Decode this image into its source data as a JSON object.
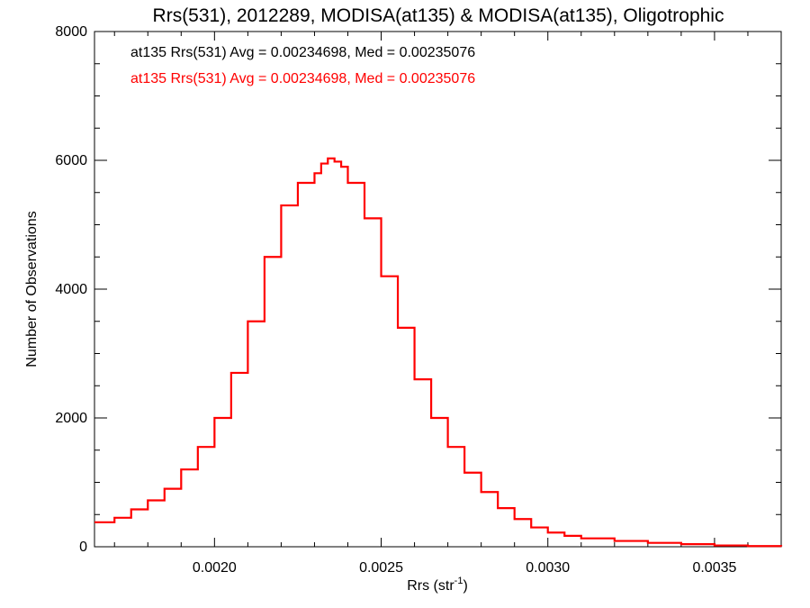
{
  "chart_data": {
    "type": "line",
    "title": "Rrs(531), 2012289, MODISA(at135) & MODISA(at135), Oligotrophic",
    "xlabel_main": "Rrs (str",
    "xlabel_sup": "-1",
    "xlabel_close": ")",
    "ylabel": "Number of Observations",
    "xlim": [
      0.00164,
      0.0037
    ],
    "ylim": [
      0,
      8000
    ],
    "x_ticks": [
      0.002,
      0.0025,
      0.003,
      0.0035
    ],
    "x_tick_labels": [
      "0.0020",
      "0.0025",
      "0.0030",
      "0.0035"
    ],
    "y_ticks": [
      0,
      2000,
      4000,
      6000,
      8000
    ],
    "y_tick_labels": [
      "0",
      "2000",
      "4000",
      "6000",
      "8000"
    ],
    "grid": false,
    "step": true,
    "annotations": [
      {
        "text": "at135 Rrs(531) Avg = 0.00234698, Med = 0.00235076",
        "color": "#000000"
      },
      {
        "text": "at135 Rrs(531) Avg = 0.00234698, Med = 0.00235076",
        "color": "#ff0000"
      }
    ],
    "series": [
      {
        "color": "#ff0000",
        "x": [
          0.00164,
          0.0017,
          0.00175,
          0.0018,
          0.00185,
          0.0019,
          0.00195,
          0.002,
          0.00205,
          0.0021,
          0.00215,
          0.0022,
          0.00225,
          0.0023,
          0.00232,
          0.00234,
          0.00236,
          0.00238,
          0.0024,
          0.00245,
          0.0025,
          0.00255,
          0.0026,
          0.00265,
          0.0027,
          0.00275,
          0.0028,
          0.00285,
          0.0029,
          0.00295,
          0.003,
          0.00305,
          0.0031,
          0.0032,
          0.0033,
          0.0034,
          0.0035,
          0.0036,
          0.0037
        ],
        "y": [
          380,
          450,
          580,
          720,
          900,
          1200,
          1550,
          2000,
          2700,
          3500,
          4500,
          5300,
          5650,
          5800,
          5950,
          6030,
          5980,
          5900,
          5650,
          5100,
          4200,
          3400,
          2600,
          2000,
          1550,
          1150,
          850,
          600,
          430,
          300,
          220,
          170,
          130,
          90,
          60,
          40,
          20,
          10,
          5
        ]
      }
    ]
  }
}
